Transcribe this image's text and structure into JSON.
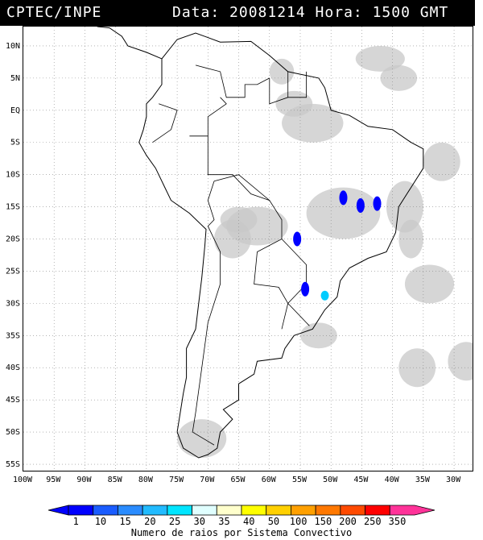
{
  "header": {
    "left_text": "CPTEC/INPE",
    "right_text": "Data: 20081214 Hora: 1500 GMT"
  },
  "map": {
    "lat_labels": [
      "10N",
      "5N",
      "EQ",
      "5S",
      "10S",
      "15S",
      "20S",
      "25S",
      "30S",
      "35S",
      "40S",
      "45S",
      "50S",
      "55S"
    ],
    "lon_labels": [
      "100W",
      "95W",
      "90W",
      "85W",
      "80W",
      "75W",
      "70W",
      "65W",
      "60W",
      "55W",
      "50W",
      "45W",
      "40W",
      "35W",
      "30W"
    ],
    "extent": {
      "lon_min": -100,
      "lon_max": -27,
      "lat_min": -56,
      "lat_max": 13
    },
    "gridlines": true,
    "cloud_color": "#c8c8c8",
    "coast_color": "#000000"
  },
  "convective_systems": [
    {
      "lon": -42.5,
      "lat": -14.5,
      "color": "#0000ff"
    },
    {
      "lon": -45.2,
      "lat": -14.8,
      "color": "#0000ff"
    },
    {
      "lon": -48.0,
      "lat": -13.6,
      "color": "#0000ff"
    },
    {
      "lon": -55.5,
      "lat": -20.0,
      "color": "#0000ff"
    },
    {
      "lon": -51.0,
      "lat": -28.8,
      "color": "#00ccff"
    },
    {
      "lon": -54.2,
      "lat": -27.8,
      "color": "#0000ff"
    }
  ],
  "colorbar": {
    "values": [
      "1",
      "10",
      "15",
      "20",
      "25",
      "30",
      "35",
      "40",
      "50",
      "100",
      "150",
      "200",
      "250",
      "350"
    ],
    "colors": [
      "#0000ff",
      "#1a5cff",
      "#2a8cff",
      "#22bbff",
      "#00e5ff",
      "#e0ffff",
      "#ffffcc",
      "#ffff00",
      "#ffd000",
      "#ffa000",
      "#ff7800",
      "#ff4a00",
      "#ff0000",
      "#ff3399"
    ],
    "caption": "Numero de raios por Sistema Convectivo"
  }
}
